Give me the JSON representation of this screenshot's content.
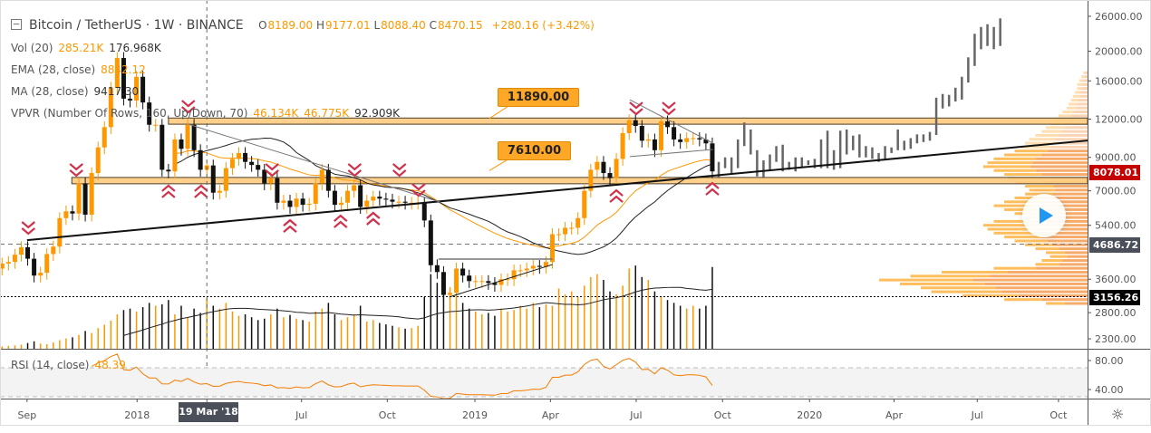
{
  "header": {
    "symbol_title": "Bitcoin / TetherUS · 1W · BINANCE",
    "ohlc": {
      "o_label": "O",
      "o": "8189.00",
      "h_label": "H",
      "h": "9177.01",
      "l_label": "L",
      "l": "8088.40",
      "c_label": "C",
      "c": "8470.15",
      "change": "+280.16 (+3.42%)"
    }
  },
  "legend": {
    "vol": {
      "label": "Vol (20)",
      "v1": "285.21K",
      "v2": "176.968K"
    },
    "ema": {
      "label": "EMA (28, close)",
      "v1": "8842.12"
    },
    "ma": {
      "label": "MA (28, close)",
      "v1": "9417.30"
    },
    "vpvr": {
      "label": "VPVR (Number Of Rows, 160, Up/Down, 70)",
      "v1": "46.134K",
      "v2": "46.775K",
      "v3": "92.909K"
    },
    "rsi": {
      "label": "RSI (14, close)",
      "v1": "48.39"
    }
  },
  "badges": {
    "last": {
      "text": "8078.01",
      "price": 8078.01,
      "color": "#c40000"
    },
    "mid": {
      "text": "4686.72",
      "price": 4686.72,
      "color": "#4a4f5a"
    },
    "low": {
      "text": "3156.26",
      "price": 3156.26,
      "color": "#000000"
    }
  },
  "crosshair": {
    "label": "19 Mar '18",
    "week": 32
  },
  "callouts": [
    {
      "text": "11890.00",
      "price": 11890,
      "week": 77
    },
    {
      "text": "7610.00",
      "price": 7610,
      "week": 77
    }
  ],
  "colors": {
    "up": "#ff9800",
    "down": "#111111",
    "marker": "#d0304a",
    "zone": "#ffcc80",
    "ema": "#ff9800",
    "ma": "#222222",
    "rsi": "#f57c00",
    "projection": "#666666"
  },
  "chart_data": {
    "type": "candlestick",
    "title": "Bitcoin / TetherUS · 1W · BINANCE",
    "y_scale": "log",
    "ylim": [
      2150,
      27500
    ],
    "first_open": 3900,
    "closes": [
      4050,
      4100,
      4330,
      4580,
      4200,
      3700,
      3780,
      4350,
      4600,
      5700,
      6000,
      5900,
      7400,
      5850,
      8000,
      9700,
      11300,
      15200,
      19000,
      14000,
      13800,
      16500,
      13600,
      11500,
      11500,
      8200,
      8100,
      10300,
      9600,
      11500,
      9500,
      8200,
      8470,
      6900,
      7000,
      8300,
      8900,
      9300,
      8700,
      8500,
      8200,
      7400,
      7700,
      6400,
      6500,
      6200,
      6600,
      6300,
      6350,
      7400,
      8200,
      7000,
      6300,
      6400,
      7000,
      7300,
      6200,
      6500,
      6700,
      6600,
      6550,
      6450,
      6450,
      6400,
      6400,
      6400,
      5600,
      4000,
      3800,
      3200,
      3250,
      3900,
      3700,
      3550,
      3550,
      3550,
      3500,
      3450,
      3600,
      3600,
      3850,
      3850,
      3900,
      3980,
      3950,
      4100,
      5050,
      5050,
      5300,
      5300,
      5700,
      7000,
      8200,
      8700,
      8000,
      7700,
      8900,
      10800,
      11900,
      11400,
      10200,
      10300,
      9500,
      11800,
      11300,
      10300,
      10100,
      10400,
      10400,
      10300,
      10000,
      8100
    ],
    "volumes_k": [
      8,
      10,
      12,
      14,
      20,
      26,
      18,
      16,
      22,
      30,
      36,
      40,
      48,
      62,
      55,
      72,
      84,
      98,
      120,
      135,
      140,
      130,
      145,
      160,
      150,
      155,
      170,
      120,
      150,
      110,
      140,
      125,
      176,
      150,
      140,
      160,
      130,
      115,
      120,
      110,
      100,
      105,
      120,
      140,
      110,
      118,
      105,
      100,
      95,
      130,
      140,
      160,
      120,
      100,
      110,
      120,
      150,
      95,
      100,
      90,
      85,
      80,
      75,
      70,
      72,
      80,
      180,
      260,
      230,
      200,
      210,
      190,
      160,
      140,
      130,
      120,
      125,
      115,
      140,
      130,
      135,
      150,
      140,
      160,
      145,
      155,
      150,
      210,
      190,
      200,
      180,
      220,
      250,
      260,
      240,
      200,
      190,
      220,
      280,
      290,
      250,
      240,
      200,
      180,
      170,
      160,
      150,
      140,
      150,
      140,
      150,
      285
    ],
    "projection": [
      [
        7700,
        8700
      ],
      [
        8300,
        9000
      ],
      [
        8000,
        9000
      ],
      [
        8300,
        10300
      ],
      [
        9800,
        11700
      ],
      [
        9200,
        11100
      ],
      [
        7800,
        9500
      ],
      [
        7700,
        8800
      ],
      [
        8200,
        9200
      ],
      [
        8700,
        9800
      ],
      [
        8100,
        9900
      ],
      [
        8200,
        8700
      ],
      [
        8100,
        9000
      ],
      [
        8300,
        9000
      ],
      [
        8500,
        8800
      ],
      [
        8300,
        8900
      ],
      [
        8300,
        10300
      ],
      [
        8300,
        11000
      ],
      [
        8200,
        9500
      ],
      [
        8300,
        11000
      ],
      [
        9200,
        11100
      ],
      [
        9500,
        10600
      ],
      [
        9000,
        10700
      ],
      [
        9000,
        9800
      ],
      [
        8900,
        9700
      ],
      [
        8700,
        9300
      ],
      [
        8800,
        9800
      ],
      [
        9300,
        9700
      ],
      [
        9500,
        11100
      ],
      [
        9500,
        10200
      ],
      [
        9600,
        10400
      ],
      [
        10000,
        10700
      ],
      [
        10100,
        10700
      ],
      [
        10200,
        10900
      ],
      [
        10650,
        14100
      ],
      [
        13000,
        14500
      ],
      [
        13200,
        14400
      ],
      [
        13700,
        15200
      ],
      [
        13900,
        16500
      ],
      [
        15800,
        19100
      ],
      [
        17900,
        22800
      ],
      [
        20300,
        24000
      ],
      [
        20800,
        24500
      ],
      [
        20300,
        24000
      ],
      [
        20800,
        25600
      ]
    ],
    "vpvr_rows": {
      "price_top": 17000,
      "price_bottom": 3000,
      "values": [
        2,
        3,
        4,
        5,
        5,
        6,
        7,
        8,
        9,
        10,
        12,
        14,
        16,
        18,
        20,
        22,
        25,
        28,
        30,
        32,
        35,
        40,
        45,
        48,
        50,
        45,
        40,
        38,
        35,
        30,
        28,
        30,
        35,
        40,
        45,
        40,
        35,
        30,
        45,
        50,
        48,
        45,
        40,
        35,
        30,
        25,
        20,
        18,
        22,
        25,
        45,
        70,
        85,
        100,
        90,
        80,
        75,
        60,
        40,
        20
      ]
    },
    "zones": [
      {
        "low": 11550,
        "high": 12100,
        "start_week": 26
      },
      {
        "low": 7380,
        "high": 7740,
        "start_week": 10.9
      }
    ],
    "trendlines": [
      {
        "name": "support-trendline",
        "w1": 3.9,
        "p1": 4830,
        "w2": 169.7,
        "p2": 10220,
        "color": "#111",
        "width": 2
      },
      {
        "name": "descending-line-2018",
        "w1": 29.1,
        "p1": 11550,
        "w2": 68.5,
        "p2": 6430,
        "color": "#777",
        "width": 1
      },
      {
        "name": "triangle-top-2019",
        "w1": 98.1,
        "p1": 13890,
        "w2": 111.1,
        "p2": 10010,
        "color": "#777",
        "width": 1
      },
      {
        "name": "triangle-bottom-2019",
        "w1": 98.1,
        "p1": 9050,
        "w2": 111.1,
        "p2": 9550,
        "color": "#777",
        "width": 1
      },
      {
        "name": "flat-top-2019",
        "w1": 68.2,
        "p1": 4190,
        "w2": 86,
        "p2": 4190,
        "color": "#777",
        "width": 1.5
      },
      {
        "name": "rising-bottom-2019",
        "w1": 69.9,
        "p1": 3150,
        "w2": 86,
        "p2": 4020,
        "color": "#111",
        "width": 1
      }
    ],
    "markers": [
      {
        "w": 4.1,
        "p": 5210,
        "dir": "down"
      },
      {
        "w": 11.6,
        "p": 8060,
        "dir": "down"
      },
      {
        "w": 29.1,
        "p": 12970,
        "dir": "down"
      },
      {
        "w": 42.2,
        "p": 8060,
        "dir": "down"
      },
      {
        "w": 55.1,
        "p": 8060,
        "dir": "down"
      },
      {
        "w": 62.1,
        "p": 8060,
        "dir": "down"
      },
      {
        "w": 65.1,
        "p": 6930,
        "dir": "down"
      },
      {
        "w": 99.1,
        "p": 12800,
        "dir": "down"
      },
      {
        "w": 104.2,
        "p": 12800,
        "dir": "down"
      },
      {
        "w": 26,
        "p": 7080,
        "dir": "up"
      },
      {
        "w": 31.1,
        "p": 7080,
        "dir": "up"
      },
      {
        "w": 45,
        "p": 5460,
        "dir": "up"
      },
      {
        "w": 52.9,
        "p": 5650,
        "dir": "up"
      },
      {
        "w": 58,
        "p": 5770,
        "dir": "up"
      },
      {
        "w": 96,
        "p": 6840,
        "dir": "up"
      },
      {
        "w": 111,
        "p": 7220,
        "dir": "up"
      }
    ],
    "price_ticks": [
      "26000.00",
      "20000.00",
      "16000.00",
      "12000.00",
      "9000.00",
      "7000.00",
      "5400.00",
      "3600.00",
      "2800.00",
      "2300.00"
    ],
    "rsi_ticks": [
      "80.00",
      "40.00"
    ],
    "time_ticks": [
      {
        "label": "Sep",
        "week": 3.9
      },
      {
        "label": "2018",
        "week": 21.1
      },
      {
        "label": "Jul",
        "week": 46.8
      },
      {
        "label": "Oct",
        "week": 60.2
      },
      {
        "label": "2019",
        "week": 73.9
      },
      {
        "label": "Apr",
        "week": 85.7
      },
      {
        "label": "Jul",
        "week": 99.1
      },
      {
        "label": "Oct",
        "week": 112.6
      },
      {
        "label": "2020",
        "week": 126.2
      },
      {
        "label": "Apr",
        "week": 139.4
      },
      {
        "label": "Jul",
        "week": 152.4
      },
      {
        "label": "Oct",
        "week": 165.1
      }
    ]
  }
}
